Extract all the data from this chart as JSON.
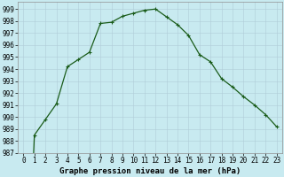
{
  "x": [
    0,
    1,
    2,
    3,
    4,
    5,
    6,
    7,
    8,
    9,
    10,
    11,
    12,
    13,
    14,
    15,
    16,
    17,
    18,
    19,
    20,
    21,
    22,
    23
  ],
  "y": [
    967.0,
    988.5,
    989.8,
    991.1,
    994.2,
    994.8,
    995.4,
    997.8,
    997.9,
    998.4,
    998.65,
    998.9,
    999.0,
    998.35,
    997.7,
    996.8,
    995.2,
    994.6,
    993.2,
    992.5,
    991.7,
    991.0,
    990.2,
    989.2
  ],
  "line_color": "#1a5c1a",
  "marker": "+",
  "marker_size": 3,
  "marker_lw": 0.8,
  "line_width": 0.9,
  "bg_color": "#c8eaf0",
  "grid_color": "#b0ccd8",
  "ylim_min": 987,
  "ylim_max": 999.6,
  "yticks": [
    987,
    988,
    989,
    990,
    991,
    992,
    993,
    994,
    995,
    996,
    997,
    998,
    999
  ],
  "xlabel": "Graphe pression niveau de la mer (hPa)",
  "xlabel_fontsize": 6.5,
  "tick_fontsize": 5.5,
  "spine_color": "#909090"
}
